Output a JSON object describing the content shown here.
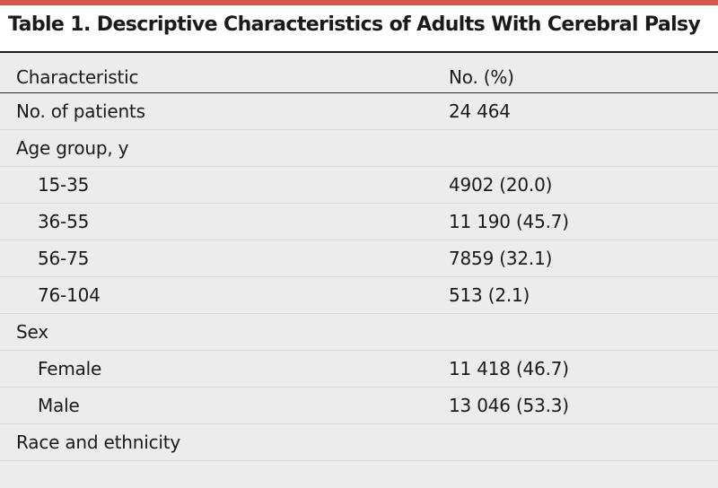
{
  "title": "Table 1. Descriptive Characteristics of Adults With Cerebral Palsy",
  "columns": [
    "Characteristic",
    "No. (%)"
  ],
  "rows": [
    {
      "label": "No. of patients",
      "value": "24 464",
      "indent": false
    },
    {
      "label": "Age group, y",
      "value": "",
      "indent": false
    },
    {
      "label": "15-35",
      "value": "4902 (20.0)",
      "indent": true
    },
    {
      "label": "36-55",
      "value": "11 190 (45.7)",
      "indent": true
    },
    {
      "label": "56-75",
      "value": "7859 (32.1)",
      "indent": true
    },
    {
      "label": "76-104",
      "value": "513 (2.1)",
      "indent": true
    },
    {
      "label": "Sex",
      "value": "",
      "indent": false
    },
    {
      "label": "Female",
      "value": "11 418 (46.7)",
      "indent": true
    },
    {
      "label": "Male",
      "value": "13 046 (53.3)",
      "indent": true
    },
    {
      "label": "Race and ethnicity",
      "value": "",
      "indent": false
    }
  ]
}
